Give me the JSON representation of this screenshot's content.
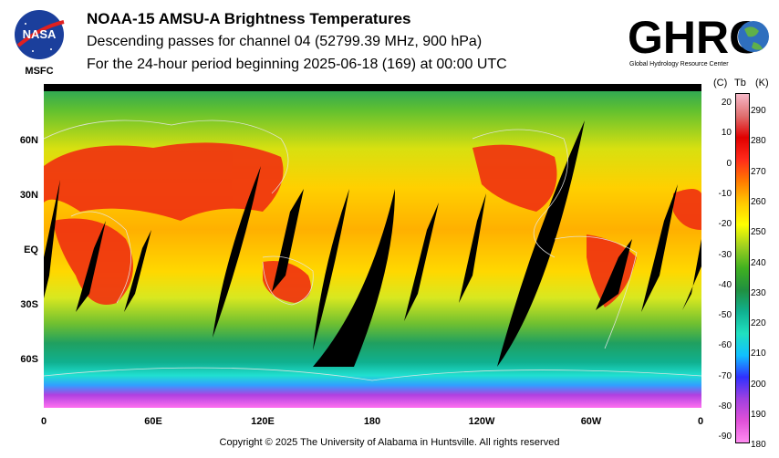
{
  "header": {
    "title": "NOAA-15 AMSU-A Brightness Temperatures",
    "subtitle": "Descending passes for channel 04 (52799.39 MHz, 900 hPa)",
    "period": "For the 24-hour period beginning 2025-06-18 (169) at 00:00 UTC"
  },
  "logos": {
    "nasa_text": "NASA",
    "msfc": "MSFC",
    "ghrc_text": "GHRC",
    "ghrc_sub": "Global Hydrology Resource Center"
  },
  "map": {
    "lat_labels": [
      "60N",
      "30N",
      "EQ",
      "30S",
      "60S"
    ],
    "lon_labels": [
      "0",
      "60E",
      "120E",
      "180",
      "120W",
      "60W",
      "0"
    ]
  },
  "colorbar": {
    "header_c": "(C)",
    "header_tb": "Tb",
    "header_k": "(K)",
    "celsius_ticks": [
      "20",
      "10",
      "0",
      "-10",
      "-20",
      "-30",
      "-40",
      "-50",
      "-60",
      "-70",
      "-80",
      "-90"
    ],
    "kelvin_ticks": [
      "290",
      "280",
      "270",
      "260",
      "250",
      "240",
      "230",
      "220",
      "210",
      "200",
      "190",
      "180"
    ],
    "colors": [
      "#ff8cf0",
      "#e050d8",
      "#a040e0",
      "#3030ff",
      "#10c0ff",
      "#20e0c0",
      "#10b090",
      "#209040",
      "#40b020",
      "#a0d020",
      "#ffff00",
      "#ffc800",
      "#ff7a00",
      "#ff2a1a",
      "#e00000",
      "#e07070",
      "#f6b8c8"
    ]
  },
  "footer": {
    "copyright": "Copyright © 2025 The University of Alabama in Huntsville.  All rights reserved"
  }
}
